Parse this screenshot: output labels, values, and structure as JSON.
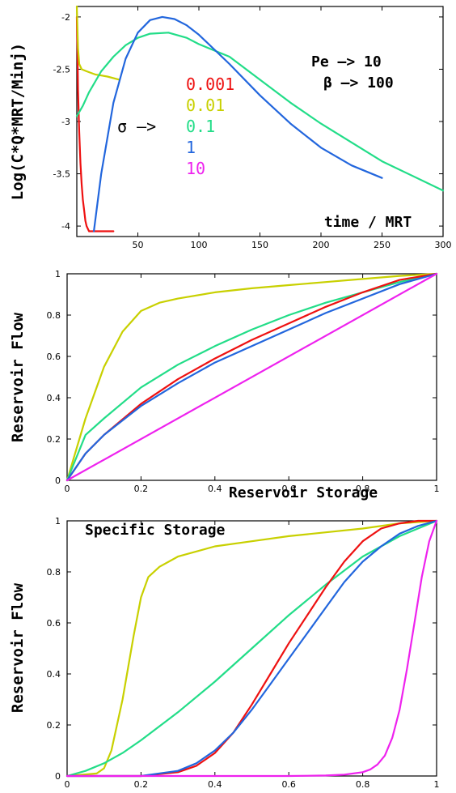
{
  "chart_data": [
    {
      "type": "line",
      "ylabel": "Log(C*Q*MRT/Minj)",
      "xlabel": "time / MRT",
      "xlim": [
        0,
        300
      ],
      "ylim": [
        -4.1,
        -1.9
      ],
      "xticks": [
        50,
        100,
        150,
        200,
        250,
        300
      ],
      "yticks": [
        -2,
        -2.5,
        -3,
        -3.5,
        -4
      ],
      "annotations": [
        {
          "text": "Pe —> 10"
        },
        {
          "text": "β —> 100"
        }
      ],
      "legend": {
        "title": "σ —>",
        "entries": [
          "0.001",
          "0.01",
          "0.1",
          "1",
          "10"
        ]
      },
      "series": [
        {
          "name": "0.001",
          "color": "#ee1111",
          "x": [
            0,
            0.5,
            1,
            2,
            3,
            4,
            5,
            6,
            7,
            8,
            10,
            30
          ],
          "y": [
            -2.0,
            -2.3,
            -2.7,
            -3.1,
            -3.4,
            -3.6,
            -3.75,
            -3.85,
            -3.95,
            -4.0,
            -4.05,
            -4.05
          ]
        },
        {
          "name": "0.01",
          "color": "#c8d000",
          "x": [
            0,
            1,
            2,
            4,
            8,
            15,
            25,
            35
          ],
          "y": [
            -1.9,
            -2.3,
            -2.45,
            -2.5,
            -2.52,
            -2.55,
            -2.57,
            -2.6
          ]
        },
        {
          "name": "0.1",
          "color": "#22dd88",
          "x": [
            0,
            5,
            10,
            20,
            30,
            40,
            50,
            60,
            75,
            90,
            100,
            125,
            150,
            175,
            200,
            250,
            300
          ],
          "y": [
            -2.95,
            -2.85,
            -2.72,
            -2.52,
            -2.38,
            -2.27,
            -2.2,
            -2.16,
            -2.15,
            -2.2,
            -2.26,
            -2.38,
            -2.6,
            -2.82,
            -3.02,
            -3.38,
            -3.66
          ]
        },
        {
          "name": "1",
          "color": "#2266dd",
          "x": [
            14,
            20,
            30,
            40,
            50,
            60,
            70,
            80,
            90,
            100,
            125,
            150,
            175,
            200,
            225,
            250
          ],
          "y": [
            -4.05,
            -3.5,
            -2.82,
            -2.4,
            -2.15,
            -2.03,
            -2.0,
            -2.02,
            -2.08,
            -2.17,
            -2.45,
            -2.75,
            -3.02,
            -3.25,
            -3.42,
            -3.54
          ]
        },
        {
          "name": "10",
          "color": "#ee22ee",
          "x": [],
          "y": []
        }
      ]
    },
    {
      "type": "line",
      "ylabel": "Reservoir Flow",
      "xlabel": "Reservoir Storage",
      "xlim": [
        0,
        1
      ],
      "ylim": [
        0,
        1
      ],
      "xticks": [
        0,
        0.2,
        0.4,
        0.6,
        0.8,
        1
      ],
      "yticks": [
        0,
        0.2,
        0.4,
        0.6,
        0.8,
        1
      ],
      "series": [
        {
          "name": "0.01",
          "color": "#c8d000",
          "x": [
            0,
            0.02,
            0.05,
            0.1,
            0.15,
            0.2,
            0.25,
            0.3,
            0.4,
            0.5,
            0.6,
            0.7,
            0.8,
            0.9,
            1
          ],
          "y": [
            0,
            0.12,
            0.3,
            0.55,
            0.72,
            0.82,
            0.86,
            0.88,
            0.91,
            0.93,
            0.945,
            0.96,
            0.975,
            0.99,
            1
          ]
        },
        {
          "name": "0.1",
          "color": "#22dd88",
          "x": [
            0,
            0.05,
            0.1,
            0.2,
            0.3,
            0.4,
            0.5,
            0.6,
            0.7,
            0.8,
            0.9,
            1
          ],
          "y": [
            0,
            0.22,
            0.3,
            0.45,
            0.56,
            0.65,
            0.73,
            0.8,
            0.86,
            0.91,
            0.96,
            1
          ]
        },
        {
          "name": "0.001",
          "color": "#ee1111",
          "x": [
            0,
            0.05,
            0.1,
            0.2,
            0.3,
            0.4,
            0.5,
            0.6,
            0.7,
            0.8,
            0.9,
            1
          ],
          "y": [
            0,
            0.13,
            0.22,
            0.37,
            0.49,
            0.59,
            0.68,
            0.76,
            0.84,
            0.91,
            0.97,
            1
          ]
        },
        {
          "name": "1",
          "color": "#2266dd",
          "x": [
            0,
            0.05,
            0.1,
            0.2,
            0.3,
            0.4,
            0.5,
            0.6,
            0.7,
            0.8,
            0.9,
            1
          ],
          "y": [
            0,
            0.13,
            0.22,
            0.36,
            0.47,
            0.57,
            0.65,
            0.73,
            0.81,
            0.88,
            0.95,
            1
          ]
        },
        {
          "name": "10",
          "color": "#ee22ee",
          "x": [
            0,
            1
          ],
          "y": [
            0,
            1
          ]
        }
      ]
    },
    {
      "type": "line",
      "ylabel": "Reservoir Flow",
      "xlabel": "",
      "annotation": "Specific Storage",
      "xlim": [
        0,
        1
      ],
      "ylim": [
        0,
        1
      ],
      "xticks": [
        0,
        0.2,
        0.4,
        0.6,
        0.8,
        1
      ],
      "yticks": [
        0,
        0.2,
        0.4,
        0.6,
        0.8,
        1
      ],
      "series": [
        {
          "name": "0.01",
          "color": "#c8d000",
          "x": [
            0,
            0.08,
            0.1,
            0.12,
            0.15,
            0.18,
            0.2,
            0.22,
            0.25,
            0.3,
            0.4,
            0.5,
            0.6,
            0.7,
            0.8,
            0.9,
            1
          ],
          "y": [
            0,
            0.01,
            0.03,
            0.1,
            0.3,
            0.55,
            0.7,
            0.78,
            0.82,
            0.86,
            0.9,
            0.92,
            0.94,
            0.955,
            0.97,
            0.99,
            1
          ]
        },
        {
          "name": "0.1",
          "color": "#22dd88",
          "x": [
            0,
            0.05,
            0.1,
            0.15,
            0.2,
            0.3,
            0.4,
            0.5,
            0.6,
            0.7,
            0.8,
            0.9,
            1
          ],
          "y": [
            0,
            0.02,
            0.05,
            0.09,
            0.14,
            0.25,
            0.37,
            0.5,
            0.63,
            0.75,
            0.86,
            0.94,
            1
          ]
        },
        {
          "name": "0.001",
          "color": "#ee1111",
          "x": [
            0,
            0.2,
            0.3,
            0.35,
            0.4,
            0.45,
            0.5,
            0.55,
            0.6,
            0.65,
            0.7,
            0.75,
            0.8,
            0.85,
            0.9,
            0.95,
            1
          ],
          "y": [
            0,
            0,
            0.015,
            0.04,
            0.09,
            0.17,
            0.28,
            0.4,
            0.52,
            0.63,
            0.74,
            0.84,
            0.92,
            0.97,
            0.99,
            1,
            1
          ]
        },
        {
          "name": "1",
          "color": "#2266dd",
          "x": [
            0,
            0.2,
            0.3,
            0.35,
            0.4,
            0.45,
            0.5,
            0.55,
            0.6,
            0.65,
            0.7,
            0.75,
            0.8,
            0.85,
            0.9,
            0.95,
            1
          ],
          "y": [
            0,
            0,
            0.02,
            0.05,
            0.1,
            0.17,
            0.26,
            0.36,
            0.46,
            0.56,
            0.66,
            0.76,
            0.84,
            0.9,
            0.95,
            0.98,
            1
          ]
        },
        {
          "name": "10",
          "color": "#ee22ee",
          "x": [
            0,
            0.6,
            0.7,
            0.75,
            0.8,
            0.82,
            0.84,
            0.86,
            0.88,
            0.9,
            0.92,
            0.94,
            0.96,
            0.98,
            1
          ],
          "y": [
            0,
            0,
            0.002,
            0.005,
            0.015,
            0.025,
            0.045,
            0.08,
            0.15,
            0.26,
            0.42,
            0.6,
            0.78,
            0.92,
            1
          ]
        }
      ]
    }
  ]
}
